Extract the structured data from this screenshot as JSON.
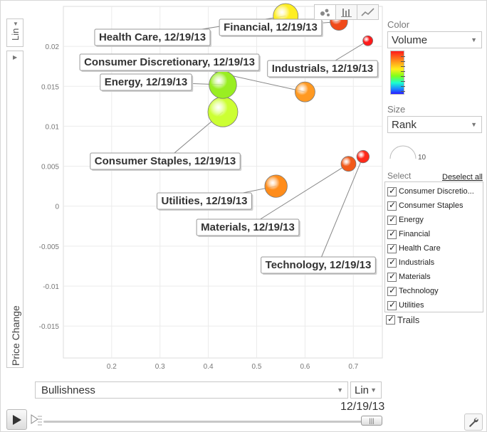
{
  "chart_data": {
    "type": "scatter",
    "title": "",
    "xlabel": "Bullishness",
    "ylabel": "Price Change",
    "xlim": [
      0.1,
      0.76
    ],
    "ylim": [
      -0.019,
      0.025
    ],
    "x_ticks": [
      "0.2",
      "0.3",
      "0.4",
      "0.5",
      "0.6",
      "0.7"
    ],
    "x_tick_values": [
      0.2,
      0.3,
      0.4,
      0.5,
      0.6,
      0.7
    ],
    "y_ticks": [
      "0.02",
      "0.015",
      "0.01",
      "0.005",
      "0",
      "-0.005",
      "-0.01",
      "-0.015"
    ],
    "y_tick_values": [
      0.02,
      0.015,
      0.01,
      0.005,
      0,
      -0.005,
      -0.01,
      -0.015
    ],
    "color_by": "Volume",
    "size_by": "Rank",
    "date": "12/19/13",
    "points": [
      {
        "name": "Consumer Staples",
        "label": "Consumer Staples, 12/19/13",
        "x": 0.43,
        "y": 0.0118,
        "size": 9,
        "color": "#ccff33"
      },
      {
        "name": "Energy",
        "label": "Energy, 12/19/13",
        "x": 0.43,
        "y": 0.0152,
        "size": 8,
        "color": "#99ee22"
      },
      {
        "name": "Health Care",
        "label": "Health Care, 12/19/13",
        "x": 0.56,
        "y": 0.0238,
        "size": 7,
        "color": "#ffee22"
      },
      {
        "name": "Utilities",
        "label": "Utilities, 12/19/13",
        "x": 0.54,
        "y": 0.0025,
        "size": 6,
        "color": "#ff8c1a"
      },
      {
        "name": "Consumer Discretionary",
        "label": "Consumer Discretionary, 12/19/13",
        "x": 0.6,
        "y": 0.0143,
        "size": 5,
        "color": "#ff9922"
      },
      {
        "name": "Financial",
        "label": "Financial, 12/19/13",
        "x": 0.67,
        "y": 0.0231,
        "size": 4,
        "color": "#f04a1a"
      },
      {
        "name": "Materials",
        "label": "Materials, 12/19/13",
        "x": 0.69,
        "y": 0.0053,
        "size": 3,
        "color": "#f25a1a"
      },
      {
        "name": "Technology",
        "label": "Technology, 12/19/13",
        "x": 0.72,
        "y": 0.0062,
        "size": 2,
        "color": "#ff2a1a"
      },
      {
        "name": "Industrials",
        "label": "Industrials, 12/19/13",
        "x": 0.73,
        "y": 0.0207,
        "size": 1,
        "color": "#ff1a1a"
      }
    ]
  },
  "controls": {
    "y_scale": "Lin",
    "x_scale": "Lin",
    "x_axis_select": "Bullishness",
    "y_axis_select": "Price Change",
    "time_label": "12/19/13"
  },
  "panel": {
    "color_title": "Color",
    "color_value": "Volume",
    "size_title": "Size",
    "size_value": "Rank",
    "size_legend_value": "10",
    "select_title": "Select",
    "deselect_label": "Deselect all",
    "items": [
      {
        "label": "Consumer Discretio...",
        "checked": true
      },
      {
        "label": "Consumer Staples",
        "checked": true
      },
      {
        "label": "Energy",
        "checked": true
      },
      {
        "label": "Financial",
        "checked": true
      },
      {
        "label": "Health Care",
        "checked": true
      },
      {
        "label": "Industrials",
        "checked": true
      },
      {
        "label": "Materials",
        "checked": true
      },
      {
        "label": "Technology",
        "checked": true
      },
      {
        "label": "Utilities",
        "checked": true
      }
    ],
    "trails_label": "Trails"
  },
  "colors": {
    "gridline": "#ebebeb",
    "axis_text": "#777777",
    "leader_line": "#888888"
  }
}
